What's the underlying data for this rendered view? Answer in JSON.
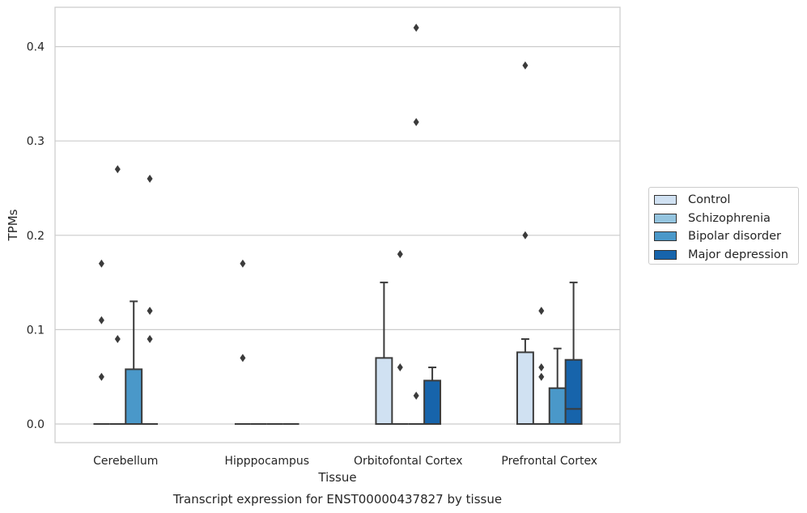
{
  "chart_data": {
    "type": "box",
    "title": "Transcript expression for ENST00000437827 by tissue",
    "xlabel": "Tissue",
    "ylabel": "TPMs",
    "ylim": [
      -0.02,
      0.44
    ],
    "yticks": [
      "0.0",
      "0.1",
      "0.2",
      "0.3",
      "0.4"
    ],
    "grid": "horizontal",
    "legend_position": "right",
    "categories": [
      "Cerebellum",
      "Hipppocampus",
      "Orbitofontal Cortex",
      "Prefrontal Cortex"
    ],
    "series": [
      {
        "name": "Control",
        "color": "#d0e1f2",
        "boxes": [
          {
            "q1": 0,
            "median": 0,
            "q3": 0,
            "whisker_low": 0,
            "whisker_high": 0,
            "outliers": [
              0.05,
              0.11,
              0.17
            ]
          },
          {
            "q1": 0,
            "median": 0,
            "q3": 0,
            "whisker_low": 0,
            "whisker_high": 0,
            "outliers": [
              0.07,
              0.17
            ]
          },
          {
            "q1": 0,
            "median": 0,
            "q3": 0.07,
            "whisker_low": 0,
            "whisker_high": 0.15,
            "outliers": []
          },
          {
            "q1": 0,
            "median": 0,
            "q3": 0.076,
            "whisker_low": 0,
            "whisker_high": 0.09,
            "outliers": [
              0.2,
              0.38
            ]
          }
        ]
      },
      {
        "name": "Schizophrenia",
        "color": "#94c4df",
        "boxes": [
          {
            "q1": 0,
            "median": 0,
            "q3": 0,
            "whisker_low": 0,
            "whisker_high": 0,
            "outliers": [
              0.09,
              0.27
            ]
          },
          {
            "q1": 0,
            "median": 0,
            "q3": 0,
            "whisker_low": 0,
            "whisker_high": 0,
            "outliers": []
          },
          {
            "q1": 0,
            "median": 0,
            "q3": 0,
            "whisker_low": 0,
            "whisker_high": 0,
            "outliers": [
              0.06,
              0.18
            ]
          },
          {
            "q1": 0,
            "median": 0,
            "q3": 0,
            "whisker_low": 0,
            "whisker_high": 0,
            "outliers": [
              0.05,
              0.06,
              0.12
            ]
          }
        ]
      },
      {
        "name": "Bipolar disorder",
        "color": "#4a98c9",
        "boxes": [
          {
            "q1": 0,
            "median": 0,
            "q3": 0.058,
            "whisker_low": 0,
            "whisker_high": 0.13,
            "outliers": []
          },
          {
            "q1": 0,
            "median": 0,
            "q3": 0,
            "whisker_low": 0,
            "whisker_high": 0,
            "outliers": []
          },
          {
            "q1": 0,
            "median": 0,
            "q3": 0,
            "whisker_low": 0,
            "whisker_high": 0,
            "outliers": [
              0.03,
              0.32,
              0.42
            ]
          },
          {
            "q1": 0,
            "median": 0,
            "q3": 0.038,
            "whisker_low": 0,
            "whisker_high": 0.08,
            "outliers": []
          }
        ]
      },
      {
        "name": "Major depression",
        "color": "#1764ab",
        "boxes": [
          {
            "q1": 0,
            "median": 0,
            "q3": 0,
            "whisker_low": 0,
            "whisker_high": 0,
            "outliers": [
              0.09,
              0.12,
              0.26
            ]
          },
          {
            "q1": 0,
            "median": 0,
            "q3": 0,
            "whisker_low": 0,
            "whisker_high": 0,
            "outliers": []
          },
          {
            "q1": 0,
            "median": 0,
            "q3": 0.046,
            "whisker_low": 0,
            "whisker_high": 0.06,
            "outliers": []
          },
          {
            "q1": 0,
            "median": 0.016,
            "q3": 0.068,
            "whisker_low": 0,
            "whisker_high": 0.15,
            "outliers": []
          }
        ]
      }
    ]
  }
}
